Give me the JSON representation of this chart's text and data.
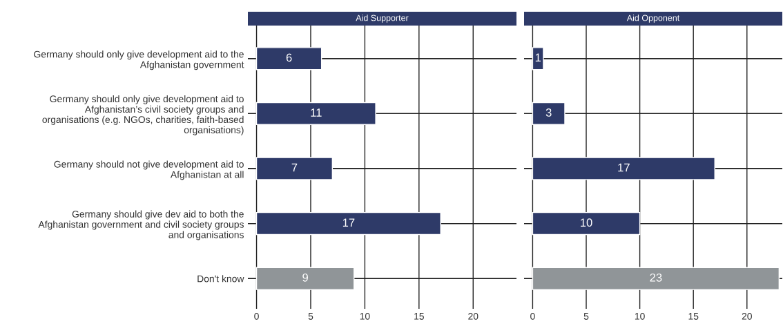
{
  "chart_data": [
    {
      "type": "bar",
      "orientation": "horizontal",
      "title": "Aid Supporter",
      "categories": [
        "Germany should only give development aid to the Afghanistan government",
        "Germany should only give development aid to Afghanistan’s civil society groups and organisations (e.g. NGOs, charities, faith-based organisations)",
        "Germany should not give development aid to Afghanistan at all",
        "Germany should give dev aid to both the Afghanistan government and civil society groups and organisations",
        "Don't know"
      ],
      "values": [
        6,
        11,
        7,
        17,
        9
      ],
      "colors": [
        "#2e3a68",
        "#2e3a68",
        "#2e3a68",
        "#2e3a68",
        "#909598"
      ],
      "xlim": [
        -0.8,
        24
      ],
      "xticks": [
        0,
        5,
        10,
        15,
        20
      ],
      "grid": true,
      "data_labels": true
    },
    {
      "type": "bar",
      "orientation": "horizontal",
      "title": "Aid Opponent",
      "categories": [
        null,
        null,
        null,
        null,
        null
      ],
      "values": [
        1,
        3,
        17,
        10,
        23
      ],
      "colors": [
        "#2e3a68",
        "#2e3a68",
        "#2e3a68",
        "#2e3a68",
        "#909598"
      ],
      "xlim": [
        -0.8,
        23.3
      ],
      "xticks": [
        0,
        5,
        10,
        15,
        20
      ],
      "grid": true,
      "data_labels": true,
      "tick_labels": "x"
    }
  ]
}
